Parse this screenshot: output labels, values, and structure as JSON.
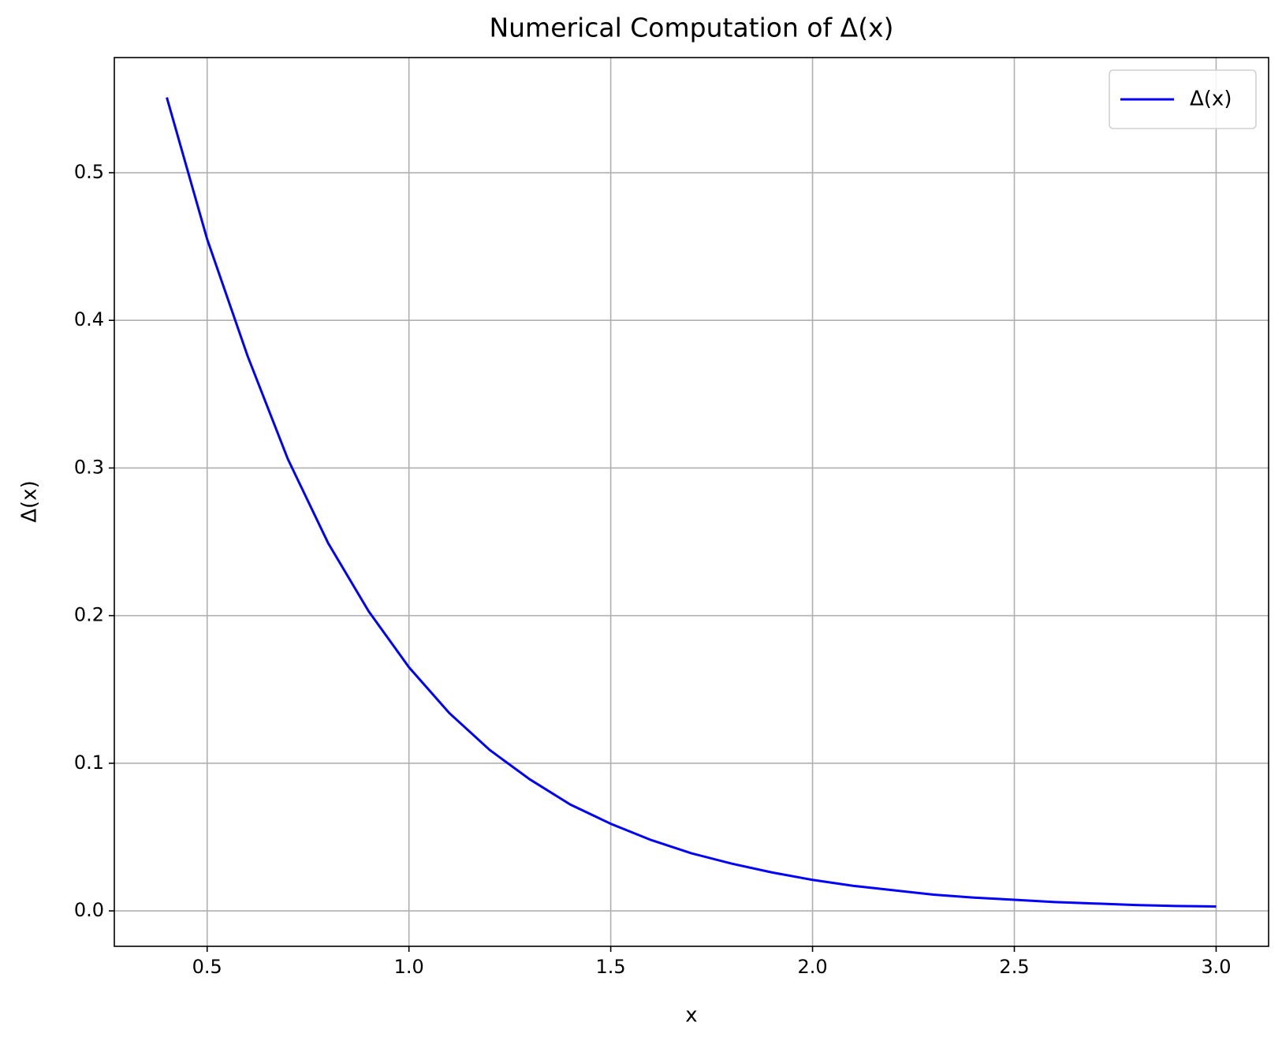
{
  "chart_data": {
    "type": "line",
    "title": "Numerical Computation of Δ(x)",
    "xlabel": "x",
    "ylabel": "Δ(x)",
    "x": [
      0.4,
      0.5,
      0.6,
      0.7,
      0.8,
      0.9,
      1.0,
      1.1,
      1.2,
      1.3,
      1.4,
      1.5,
      1.6,
      1.7,
      1.8,
      1.9,
      2.0,
      2.1,
      2.2,
      2.3,
      2.4,
      2.5,
      2.6,
      2.7,
      2.8,
      2.9,
      3.0
    ],
    "series": [
      {
        "name": "Δ(x)",
        "color": "#0000ff",
        "values": [
          0.551,
          0.455,
          0.376,
          0.306,
          0.249,
          0.203,
          0.165,
          0.134,
          0.109,
          0.089,
          0.072,
          0.059,
          0.048,
          0.039,
          0.032,
          0.026,
          0.021,
          0.017,
          0.014,
          0.011,
          0.009,
          0.0075,
          0.006,
          0.005,
          0.004,
          0.0033,
          0.003
        ]
      }
    ],
    "xlim": [
      0.27,
      3.13
    ],
    "ylim": [
      -0.024,
      0.578
    ],
    "xticks": [
      0.5,
      {
        "value": 1,
        "label": "1.0"
      },
      1.5,
      {
        "value": 2,
        "label": "2.0"
      },
      2.5,
      {
        "value": 3,
        "label": "3.0"
      }
    ],
    "yticks": [
      {
        "value": 0,
        "label": "0.0"
      },
      0.1,
      0.2,
      0.3,
      0.4,
      0.5
    ],
    "grid": true,
    "legend": "upper right"
  }
}
